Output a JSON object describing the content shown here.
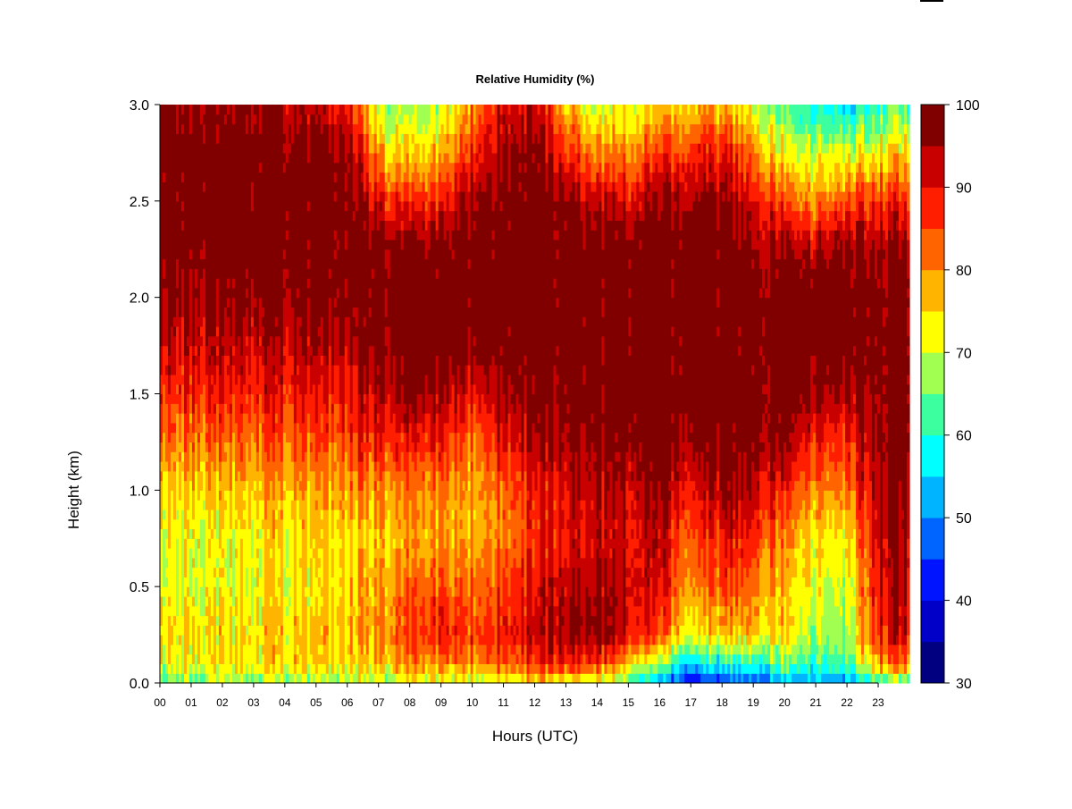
{
  "chart_data": {
    "type": "heatmap",
    "title": "Relative Humidity (%)",
    "xlabel": "Hours (UTC)",
    "ylabel": "Height (km)",
    "xlim": [
      0,
      24
    ],
    "ylim": [
      0.0,
      3.0
    ],
    "x_ticks": [
      "00",
      "01",
      "02",
      "03",
      "04",
      "05",
      "06",
      "07",
      "08",
      "09",
      "10",
      "11",
      "12",
      "13",
      "14",
      "15",
      "16",
      "17",
      "18",
      "19",
      "20",
      "21",
      "22",
      "23"
    ],
    "y_ticks": [
      "0.0",
      "0.5",
      "1.0",
      "1.5",
      "2.0",
      "2.5",
      "3.0"
    ],
    "colorbar": {
      "min": 30,
      "max": 100,
      "step": 5,
      "tick_labels": [
        "30",
        "40",
        "50",
        "60",
        "70",
        "80",
        "90",
        "100"
      ],
      "colors": [
        "#000080",
        "#0000c8",
        "#0014ff",
        "#0064ff",
        "#00b4ff",
        "#00ffff",
        "#3cffa0",
        "#a0ff50",
        "#ffff00",
        "#ffb400",
        "#ff6400",
        "#ff1e00",
        "#c80000",
        "#800000"
      ]
    },
    "profile_heights_km": [
      0.0,
      0.1,
      0.25,
      0.5,
      0.75,
      1.0,
      1.25,
      1.5,
      1.75,
      2.0,
      2.25,
      2.5,
      2.75,
      3.0
    ],
    "profiles": [
      {
        "hour": 0,
        "rh": [
          64,
          72,
          75,
          72,
          72,
          76,
          82,
          88,
          93,
          97,
          100,
          100,
          100,
          98
        ]
      },
      {
        "hour": 2,
        "rh": [
          66,
          74,
          74,
          72,
          72,
          76,
          82,
          88,
          93,
          97,
          100,
          100,
          100,
          97
        ]
      },
      {
        "hour": 4,
        "rh": [
          66,
          75,
          76,
          73,
          74,
          78,
          84,
          89,
          94,
          98,
          100,
          100,
          99,
          96
        ]
      },
      {
        "hour": 6,
        "rh": [
          68,
          76,
          78,
          76,
          76,
          80,
          86,
          90,
          95,
          99,
          100,
          100,
          98,
          90
        ]
      },
      {
        "hour": 7,
        "rh": [
          68,
          76,
          80,
          78,
          76,
          80,
          88,
          94,
          98,
          100,
          100,
          90,
          78,
          68
        ]
      },
      {
        "hour": 8,
        "rh": [
          70,
          80,
          86,
          82,
          78,
          80,
          88,
          96,
          100,
          100,
          98,
          86,
          74,
          66
        ]
      },
      {
        "hour": 9,
        "rh": [
          70,
          80,
          88,
          84,
          78,
          80,
          88,
          95,
          100,
          100,
          98,
          88,
          76,
          68
        ]
      },
      {
        "hour": 10,
        "rh": [
          70,
          80,
          86,
          82,
          78,
          78,
          82,
          90,
          98,
          100,
          100,
          96,
          88,
          80
        ]
      },
      {
        "hour": 11,
        "rh": [
          70,
          84,
          90,
          86,
          82,
          84,
          90,
          96,
          100,
          100,
          100,
          100,
          96,
          92
        ]
      },
      {
        "hour": 12,
        "rh": [
          72,
          86,
          92,
          90,
          86,
          88,
          94,
          98,
          100,
          100,
          100,
          100,
          97,
          92
        ]
      },
      {
        "hour": 13,
        "rh": [
          72,
          88,
          96,
          94,
          90,
          92,
          96,
          99,
          100,
          100,
          100,
          98,
          88,
          78
        ]
      },
      {
        "hour": 14,
        "rh": [
          70,
          86,
          98,
          96,
          92,
          94,
          98,
          100,
          100,
          100,
          100,
          92,
          80,
          70
        ]
      },
      {
        "hour": 15,
        "rh": [
          62,
          78,
          92,
          94,
          92,
          94,
          98,
          100,
          100,
          100,
          100,
          92,
          82,
          72
        ]
      },
      {
        "hour": 16,
        "rh": [
          50,
          66,
          84,
          90,
          92,
          96,
          100,
          100,
          100,
          100,
          100,
          96,
          86,
          74
        ]
      },
      {
        "hour": 17,
        "rh": [
          40,
          56,
          72,
          80,
          84,
          90,
          96,
          100,
          100,
          100,
          100,
          96,
          88,
          76
        ]
      },
      {
        "hour": 18,
        "rh": [
          42,
          58,
          76,
          84,
          88,
          94,
          98,
          100,
          100,
          100,
          100,
          96,
          88,
          76
        ]
      },
      {
        "hour": 19,
        "rh": [
          48,
          62,
          78,
          84,
          90,
          96,
          100,
          100,
          100,
          100,
          98,
          92,
          84,
          72
        ]
      },
      {
        "hour": 20,
        "rh": [
          50,
          64,
          74,
          76,
          80,
          88,
          96,
          100,
          100,
          100,
          96,
          84,
          72,
          62
        ]
      },
      {
        "hour": 21,
        "rh": [
          52,
          62,
          68,
          72,
          74,
          80,
          88,
          96,
          100,
          100,
          94,
          80,
          70,
          58
        ]
      },
      {
        "hour": 22,
        "rh": [
          50,
          60,
          66,
          68,
          72,
          80,
          86,
          94,
          100,
          100,
          96,
          84,
          70,
          54
        ]
      },
      {
        "hour": 23,
        "rh": [
          62,
          80,
          90,
          92,
          94,
          96,
          98,
          100,
          100,
          100,
          98,
          88,
          74,
          62
        ]
      },
      {
        "hour": 24,
        "rh": [
          64,
          84,
          92,
          94,
          96,
          98,
          100,
          100,
          100,
          100,
          98,
          88,
          76,
          64
        ]
      }
    ]
  }
}
